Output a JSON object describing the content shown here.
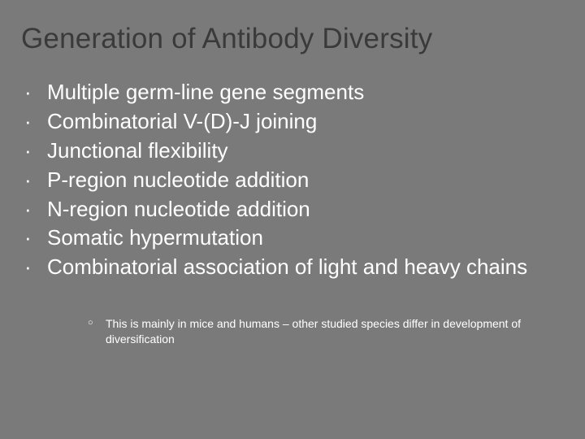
{
  "slide": {
    "title": "Generation of Antibody Diversity",
    "bullets": [
      "Multiple germ-line gene segments",
      "Combinatorial V-(D)-J joining",
      "Junctional flexibility",
      "P-region nucleotide addition",
      "N-region nucleotide addition",
      "Somatic hypermutation",
      "Combinatorial association of light and heavy chains"
    ],
    "sub_bullets": [
      "This is mainly in mice and humans – other studied species differ in development of diversification"
    ]
  },
  "style": {
    "background_color": "#7a7a7a",
    "title_color": "#3a3a3a",
    "title_fontsize": 35,
    "body_color": "#ffffff",
    "body_fontsize": 26,
    "sub_fontsize": 14,
    "font_family": "Arial"
  }
}
